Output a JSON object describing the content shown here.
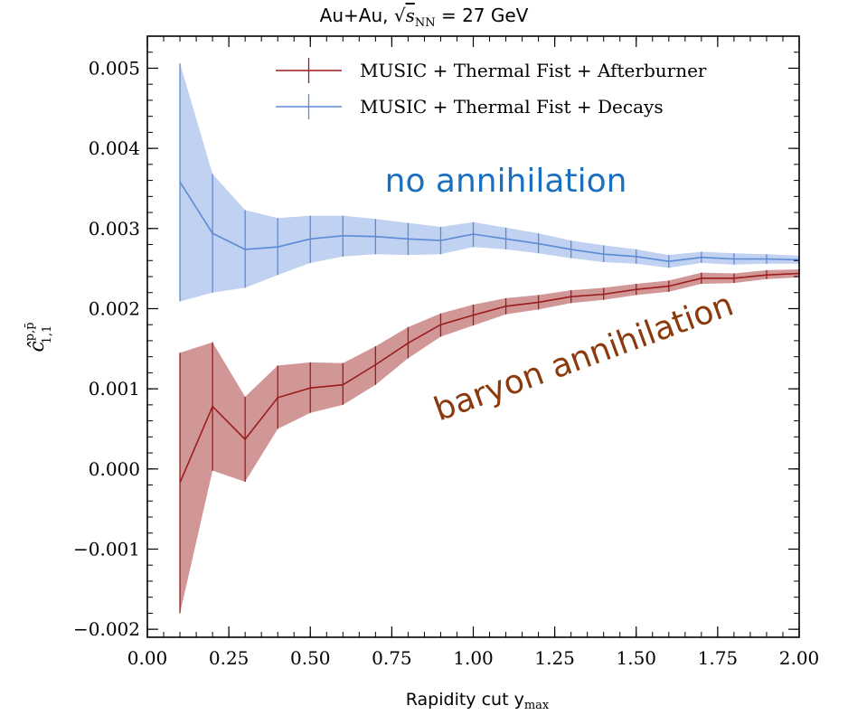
{
  "chart_data": {
    "type": "line",
    "title": "Au+Au, √s_NN = 27 GeV",
    "title_parts": {
      "prefix": "Au+Au, ",
      "s_symbol": "s",
      "s_subscript": "NN",
      "suffix": " = 27 GeV"
    },
    "xlabel": "Rapidity cut y",
    "xlabel_subscript": "max",
    "ylabel": "ĉ",
    "ylabel_superscript": "p,p̄",
    "ylabel_subscript": "1,1",
    "xlim": [
      0.0,
      2.0
    ],
    "ylim": [
      -0.0021,
      0.0054
    ],
    "x_ticks": [
      0.0,
      0.25,
      0.5,
      0.75,
      1.0,
      1.25,
      1.5,
      1.75,
      2.0
    ],
    "x_tick_labels": [
      "0.00",
      "0.25",
      "0.50",
      "0.75",
      "1.00",
      "1.25",
      "1.50",
      "1.75",
      "2.00"
    ],
    "y_ticks": [
      -0.002,
      -0.001,
      0.0,
      0.001,
      0.002,
      0.003,
      0.004,
      0.005
    ],
    "y_tick_labels": [
      "−0.002",
      "−0.001",
      "0.000",
      "0.001",
      "0.002",
      "0.003",
      "0.004",
      "0.005"
    ],
    "grid": false,
    "legend_position": "top-right",
    "x": [
      0.1,
      0.2,
      0.3,
      0.4,
      0.5,
      0.6,
      0.7,
      0.8,
      0.9,
      1.0,
      1.1,
      1.2,
      1.3,
      1.4,
      1.5,
      1.6,
      1.7,
      1.8,
      1.9,
      2.0
    ],
    "series": [
      {
        "name": "MUSIC + Thermal Fist + Afterburner",
        "color": "#9b1c1c",
        "band_color": "#c98585",
        "values": [
          -0.00017,
          0.00078,
          0.00037,
          0.00089,
          0.00101,
          0.00105,
          0.0013,
          0.00157,
          0.0018,
          0.00192,
          0.00203,
          0.00208,
          0.00215,
          0.00218,
          0.00224,
          0.00228,
          0.00238,
          0.00238,
          0.00242,
          0.00244
        ],
        "lower": [
          -0.0018,
          -2e-05,
          -0.00016,
          0.0005,
          0.0007,
          0.0008,
          0.00105,
          0.00138,
          0.00165,
          0.00179,
          0.00193,
          0.00199,
          0.00207,
          0.00211,
          0.00217,
          0.00221,
          0.00231,
          0.00232,
          0.00237,
          0.00239
        ],
        "upper": [
          0.00145,
          0.00158,
          0.0009,
          0.00129,
          0.00133,
          0.00132,
          0.00153,
          0.00177,
          0.00194,
          0.00205,
          0.00213,
          0.00217,
          0.00223,
          0.00226,
          0.00231,
          0.00235,
          0.00245,
          0.00244,
          0.00248,
          0.00249
        ]
      },
      {
        "name": "MUSIC + Thermal Fist + Decays",
        "color": "#5b8bd6",
        "band_color": "#b5c9ef",
        "values": [
          0.00358,
          0.00294,
          0.00274,
          0.00277,
          0.00287,
          0.00291,
          0.0029,
          0.00287,
          0.00285,
          0.00293,
          0.00287,
          0.00281,
          0.00274,
          0.00268,
          0.00265,
          0.00259,
          0.00264,
          0.00262,
          0.00262,
          0.00261
        ],
        "lower": [
          0.00209,
          0.0022,
          0.00226,
          0.00242,
          0.00257,
          0.00265,
          0.00268,
          0.00267,
          0.00268,
          0.00277,
          0.00274,
          0.00269,
          0.00263,
          0.00258,
          0.00256,
          0.00251,
          0.00257,
          0.00255,
          0.00256,
          0.00256
        ],
        "upper": [
          0.00506,
          0.00368,
          0.00323,
          0.00313,
          0.00316,
          0.00316,
          0.00312,
          0.00307,
          0.00302,
          0.00308,
          0.00301,
          0.00294,
          0.00285,
          0.00279,
          0.00274,
          0.00267,
          0.00271,
          0.00269,
          0.00268,
          0.00266
        ]
      }
    ],
    "annotations": [
      {
        "text": "no annihilation",
        "color": "#1a6fbf",
        "x": 1.1,
        "y": 0.00346
      },
      {
        "text": "baryon annihilation",
        "color": "#8b3a0e",
        "x": 1.35,
        "y": 0.00127,
        "rotation_deg": -20
      }
    ]
  }
}
